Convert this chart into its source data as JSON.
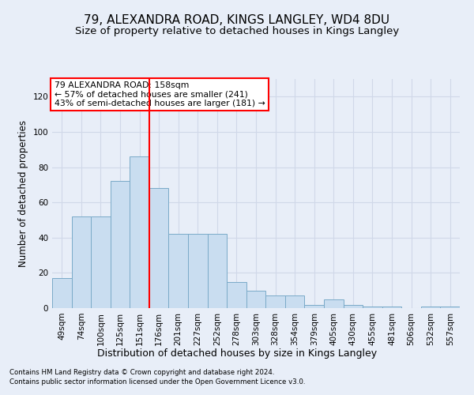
{
  "title": "79, ALEXANDRA ROAD, KINGS LANGLEY, WD4 8DU",
  "subtitle": "Size of property relative to detached houses in Kings Langley",
  "xlabel": "Distribution of detached houses by size in Kings Langley",
  "ylabel": "Number of detached properties",
  "categories": [
    "49sqm",
    "74sqm",
    "100sqm",
    "125sqm",
    "151sqm",
    "176sqm",
    "201sqm",
    "227sqm",
    "252sqm",
    "278sqm",
    "303sqm",
    "328sqm",
    "354sqm",
    "379sqm",
    "405sqm",
    "430sqm",
    "455sqm",
    "481sqm",
    "506sqm",
    "532sqm",
    "557sqm"
  ],
  "values": [
    17,
    52,
    52,
    72,
    86,
    68,
    42,
    42,
    42,
    15,
    10,
    7,
    7,
    2,
    5,
    2,
    1,
    1,
    0,
    1,
    1
  ],
  "bar_color": "#c9ddf0",
  "bar_edge_color": "#7aaac8",
  "grid_color": "#d0d8e8",
  "vline_x": 4.5,
  "vline_color": "red",
  "annotation_text": "79 ALEXANDRA ROAD: 158sqm\n← 57% of detached houses are smaller (241)\n43% of semi-detached houses are larger (181) →",
  "annotation_box_color": "white",
  "annotation_box_edge_color": "red",
  "ylim": [
    0,
    130
  ],
  "yticks": [
    0,
    20,
    40,
    60,
    80,
    100,
    120
  ],
  "footnote1": "Contains HM Land Registry data © Crown copyright and database right 2024.",
  "footnote2": "Contains public sector information licensed under the Open Government Licence v3.0.",
  "background_color": "#e8eef8",
  "title_fontsize": 11,
  "subtitle_fontsize": 9.5,
  "xlabel_fontsize": 9,
  "ylabel_fontsize": 8.5,
  "tick_fontsize": 7.5,
  "annotation_fontsize": 7.8
}
